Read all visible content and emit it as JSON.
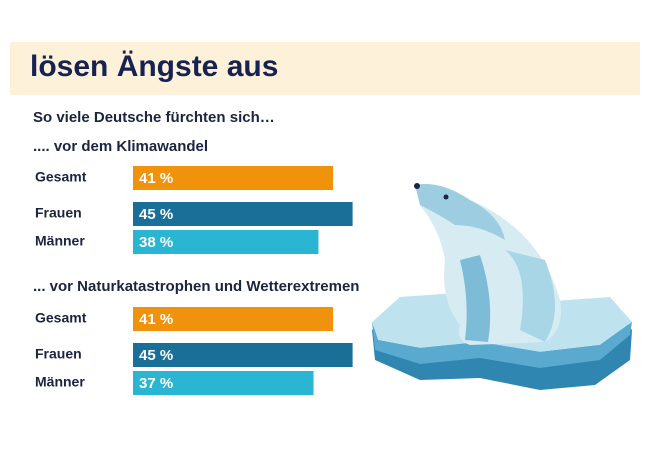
{
  "header": {
    "title": "lösen Ängste aus",
    "subtitle": "So viele Deutsche fürchten sich…"
  },
  "chart_data": [
    {
      "type": "bar",
      "title": ".... vor dem Klimawandel",
      "categories": [
        "Gesamt",
        "Frauen",
        "Männer"
      ],
      "values": [
        41,
        45,
        38
      ],
      "value_labels": [
        "41 %",
        "45 %",
        "38 %"
      ],
      "colors": [
        "#f0920c",
        "#1a6f98",
        "#2ab6d2"
      ]
    },
    {
      "type": "bar",
      "title": "... vor Naturkatastrophen und Wetterextremen",
      "categories": [
        "Gesamt",
        "Frauen",
        "Männer"
      ],
      "values": [
        41,
        45,
        37
      ],
      "value_labels": [
        "41 %",
        "45 %",
        "37 %"
      ],
      "colors": [
        "#f0920c",
        "#1a6f98",
        "#2ab6d2"
      ]
    }
  ]
}
